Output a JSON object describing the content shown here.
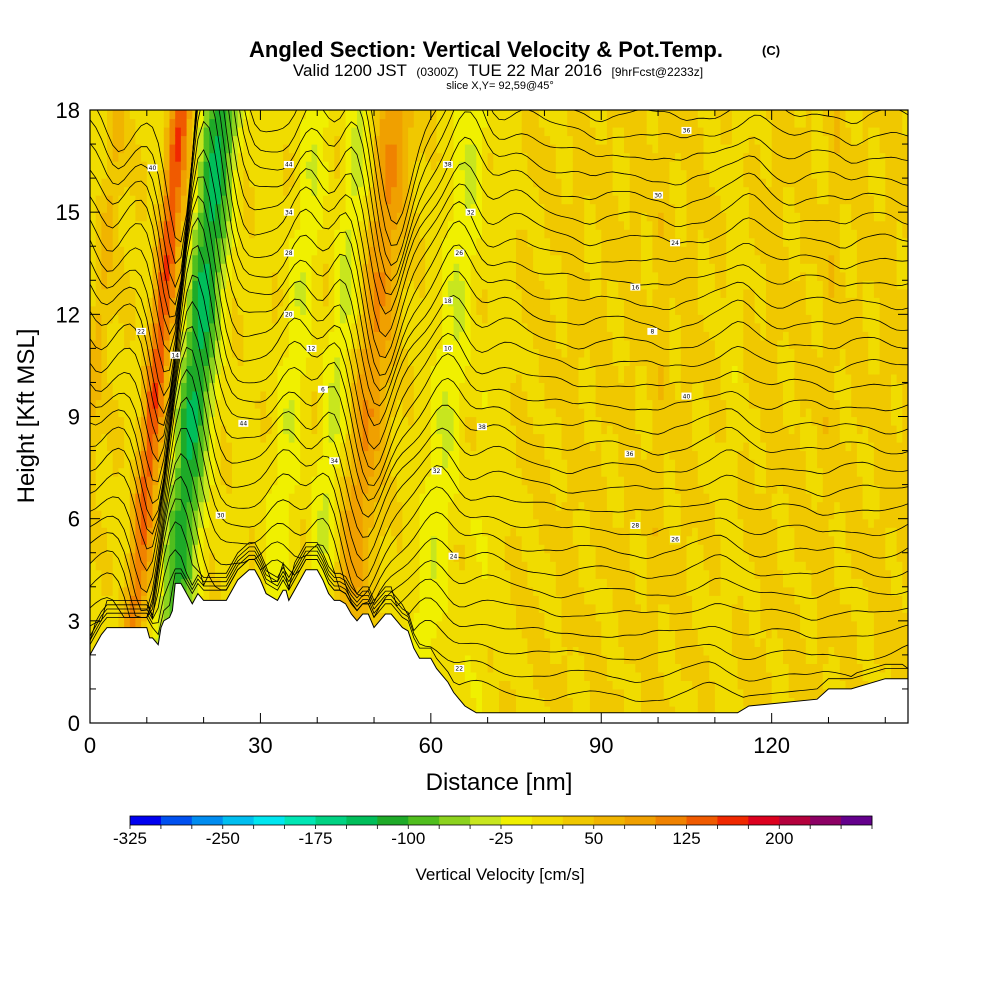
{
  "chart_data": {
    "type": "heatmap",
    "title": "Angled Section: Vertical Velocity & Pot.Temp.",
    "title_units": "(C)",
    "subtitle_parts": [
      "Valid 1200 JST",
      "(0300Z)",
      "TUE 22 Mar 2016",
      "[9hrFcst@2233z]"
    ],
    "slice_label": "slice X,Y= 92,59@45°",
    "xlabel": "Distance [nm]",
    "ylabel": "Height [Kft MSL]",
    "xlim": [
      0,
      144
    ],
    "ylim": [
      0,
      18
    ],
    "x_ticks": [
      "0",
      "30",
      "60",
      "90",
      "120"
    ],
    "x_tick_values": [
      0,
      30,
      60,
      90,
      120
    ],
    "y_ticks": [
      "0",
      "3",
      "6",
      "9",
      "12",
      "15",
      "18"
    ],
    "y_tick_values": [
      0,
      3,
      6,
      9,
      12,
      15,
      18
    ],
    "colorbar": {
      "label": "Vertical Velocity [cm/s]",
      "tick_labels": [
        "-325",
        "-250",
        "-175",
        "-100",
        "-25",
        "50",
        "125",
        "200"
      ],
      "tick_values": [
        -325,
        -250,
        -175,
        -100,
        -25,
        50,
        125,
        200
      ],
      "min": -325,
      "max": 250,
      "step": 25,
      "colors": [
        "#0000f0",
        "#0050f0",
        "#008cf0",
        "#00bef0",
        "#00e6f0",
        "#00e6b4",
        "#00d282",
        "#00be5a",
        "#1eaa28",
        "#50be1e",
        "#8cd21e",
        "#c8e61e",
        "#f0f000",
        "#f0dc00",
        "#f0c800",
        "#f0b400",
        "#f0a000",
        "#f08200",
        "#f05a00",
        "#f02800",
        "#dc001e",
        "#b4003c",
        "#8c0064",
        "#64008c"
      ]
    },
    "terrain_profile": {
      "x": [
        0,
        2,
        3,
        10,
        10.5,
        11,
        12,
        12.5,
        13,
        14,
        14.5,
        15,
        16,
        18,
        19,
        20,
        24,
        25,
        26,
        28,
        29,
        30,
        31,
        33,
        34,
        34.5,
        35,
        36,
        37,
        38,
        40,
        41,
        42,
        43,
        44,
        45,
        46,
        47,
        48,
        49,
        50,
        51,
        52,
        53,
        54,
        55,
        56,
        57,
        58,
        60,
        61,
        62,
        63,
        64,
        65,
        66,
        67,
        68,
        69,
        70,
        75,
        80,
        85,
        90,
        95,
        100,
        105,
        114,
        116,
        128,
        130,
        134,
        140,
        144
      ],
      "height_kft": [
        2.0,
        2.6,
        2.8,
        2.8,
        2.5,
        2.5,
        2.3,
        2.8,
        3.0,
        3.1,
        3.3,
        4.1,
        4.1,
        3.5,
        3.8,
        3.6,
        3.6,
        3.9,
        4.2,
        4.5,
        4.5,
        4.2,
        3.8,
        3.6,
        3.9,
        3.9,
        3.6,
        3.9,
        4.2,
        4.5,
        4.5,
        4.2,
        3.8,
        3.6,
        3.6,
        3.5,
        3.2,
        3.0,
        3.2,
        3.2,
        2.8,
        3.0,
        3.2,
        3.2,
        3.0,
        2.8,
        2.7,
        2.2,
        1.9,
        1.9,
        1.6,
        1.4,
        1.2,
        0.9,
        0.7,
        0.5,
        0.4,
        0.3,
        0.3,
        0.3,
        0.3,
        0.3,
        0.3,
        0.3,
        0.3,
        0.3,
        0.3,
        0.3,
        0.5,
        0.7,
        1.0,
        1.0,
        1.3,
        1.3
      ]
    },
    "columns": [
      {
        "x": 0,
        "w": 1.3
      },
      {
        "x": 2,
        "w": 0.4
      },
      {
        "x": 5,
        "w": 0.4
      },
      {
        "x": 10,
        "w": 1.4
      },
      {
        "x": 11,
        "w": 2.1
      },
      {
        "x": 12,
        "w": 1.6
      },
      {
        "x": 14,
        "w": 0.6
      },
      {
        "x": 15.5,
        "w": -1.2
      },
      {
        "x": 17,
        "w": -2.4
      },
      {
        "x": 18.5,
        "w": -2.7
      },
      {
        "x": 20,
        "w": -1.8
      },
      {
        "x": 21.5,
        "w": -0.8
      },
      {
        "x": 23,
        "w": 0.4
      },
      {
        "x": 25,
        "w": 0.2
      },
      {
        "x": 28,
        "w": 0.1
      },
      {
        "x": 31,
        "w": 0.3
      },
      {
        "x": 33,
        "w": -0.2
      },
      {
        "x": 35,
        "w": -0.9
      },
      {
        "x": 37,
        "w": -0.5
      },
      {
        "x": 39,
        "w": 0.4
      },
      {
        "x": 41,
        "w": -0.3
      },
      {
        "x": 43,
        "w": -1.2
      },
      {
        "x": 45,
        "w": -0.2
      },
      {
        "x": 47,
        "w": 1.6
      },
      {
        "x": 49,
        "w": 2.2
      },
      {
        "x": 51,
        "w": 1.3
      },
      {
        "x": 53,
        "w": 0.6
      },
      {
        "x": 56,
        "w": 0.3
      },
      {
        "x": 59,
        "w": 0.0
      },
      {
        "x": 61,
        "w": -0.6
      },
      {
        "x": 63,
        "w": -1.0
      },
      {
        "x": 65,
        "w": -0.4
      },
      {
        "x": 67,
        "w": 0.3
      },
      {
        "x": 70,
        "w": -0.2
      },
      {
        "x": 73,
        "w": -0.3
      },
      {
        "x": 76,
        "w": 0.2
      },
      {
        "x": 80,
        "w": 0.3
      },
      {
        "x": 85,
        "w": 0.6
      },
      {
        "x": 90,
        "w": 0.4
      },
      {
        "x": 95,
        "w": 0.5
      },
      {
        "x": 100,
        "w": 0.7
      },
      {
        "x": 105,
        "w": 0.5
      },
      {
        "x": 110,
        "w": 0.2
      },
      {
        "x": 113,
        "w": -0.4
      },
      {
        "x": 116,
        "w": 0.3
      },
      {
        "x": 120,
        "w": 0.6
      },
      {
        "x": 125,
        "w": 0.4
      },
      {
        "x": 130,
        "w": 0.7
      },
      {
        "x": 135,
        "w": 0.4
      },
      {
        "x": 140,
        "w": 0.6
      },
      {
        "x": 144,
        "w": 0.5
      }
    ],
    "contour_labels": [
      "40",
      "44",
      "38",
      "36",
      "34",
      "32",
      "30",
      "28",
      "26",
      "24",
      "22",
      "20",
      "18",
      "16",
      "14",
      "12",
      "10",
      "8",
      "6"
    ]
  }
}
